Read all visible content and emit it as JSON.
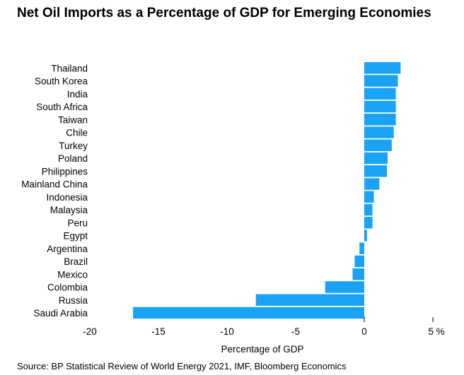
{
  "chart_data": {
    "type": "bar",
    "orientation": "horizontal",
    "title": "Net Oil Imports as a Percentage of GDP for Emerging Economies",
    "xlabel": "Percentage of GDP",
    "ylabel": "",
    "xlim": [
      -20,
      5
    ],
    "xticks": [
      -20,
      -15,
      -10,
      -5,
      0,
      5
    ],
    "xtick_labels": [
      "-20",
      "-15",
      "-10",
      "-5",
      "0",
      "5 %"
    ],
    "grid": false,
    "bar_color": "#1aa3f5",
    "categories": [
      "Thailand",
      "South Korea",
      "India",
      "South Africa",
      "Taiwan",
      "Chile",
      "Turkey",
      "Poland",
      "Philippines",
      "Mainland China",
      "Indonesia",
      "Malaysia",
      "Peru",
      "Egypt",
      "Argentina",
      "Brazil",
      "Mexico",
      "Colombia",
      "Russia",
      "Saudi Arabia"
    ],
    "values": [
      2.65,
      2.45,
      2.3,
      2.3,
      2.3,
      2.15,
      2.0,
      1.7,
      1.65,
      1.1,
      0.7,
      0.6,
      0.6,
      0.2,
      -0.35,
      -0.7,
      -0.85,
      -2.85,
      -7.9,
      -16.85
    ]
  },
  "source": "Source: BP Statistical Review of World Energy 2021, IMF, Bloomberg Economics"
}
